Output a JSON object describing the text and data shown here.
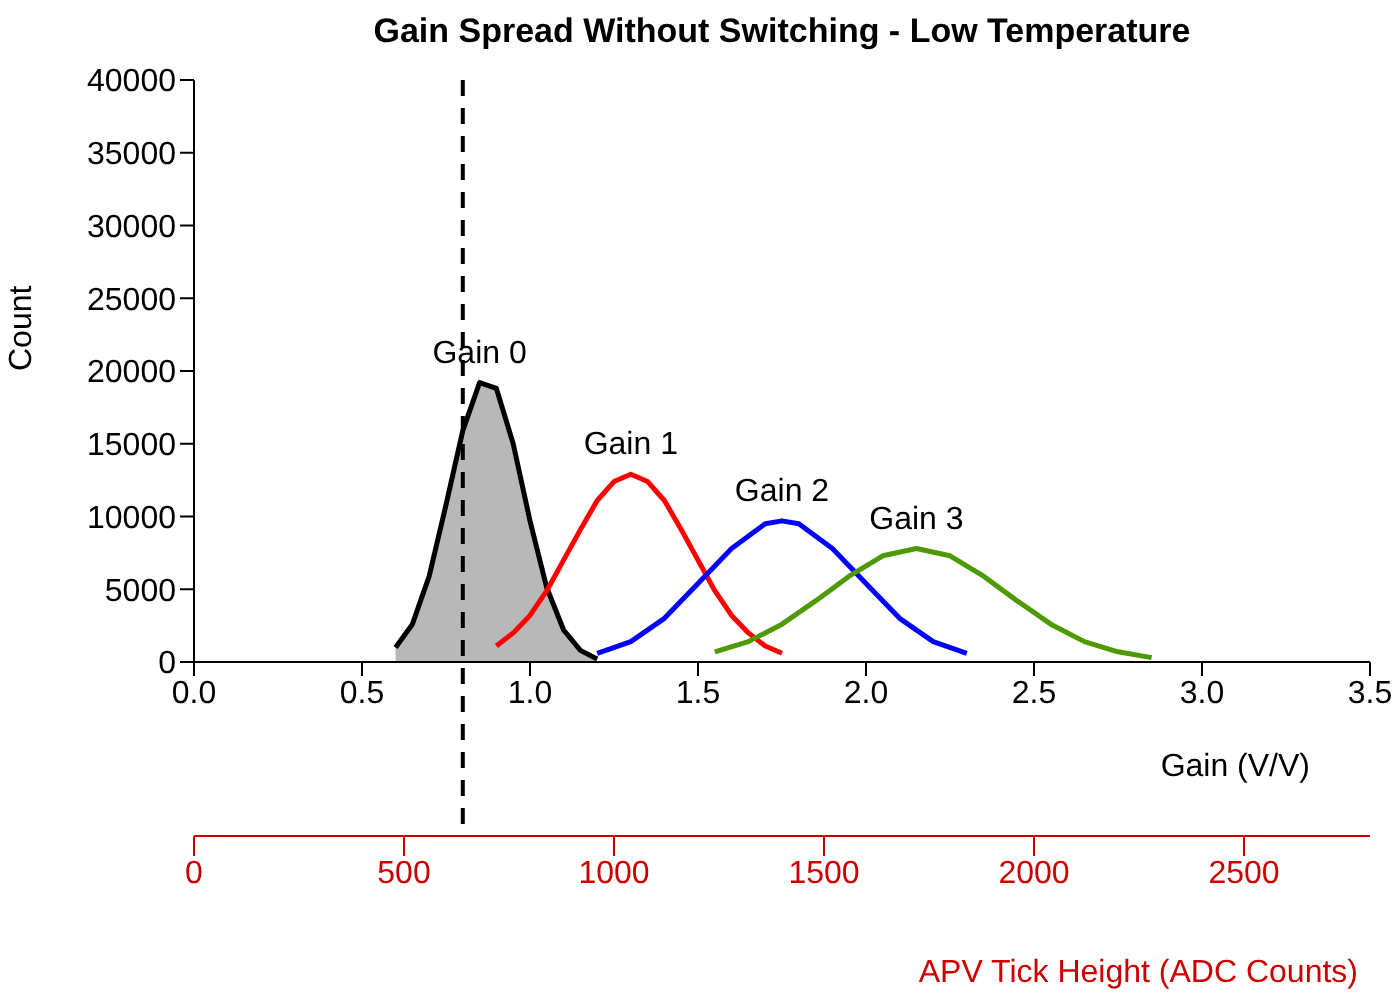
{
  "chart_data": {
    "type": "line",
    "title": "Gain Spread Without Switching - Low Temperature",
    "xlabel": "Gain (V/V)",
    "ylabel": "Count",
    "x2label": "APV Tick Height (ADC Counts)",
    "xlim": [
      0,
      3.5
    ],
    "xticks": [
      {
        "value": 0,
        "label": "0.0"
      },
      {
        "value": 0.5,
        "label": "0.5"
      },
      {
        "value": 1,
        "label": "1.0"
      },
      {
        "value": 1.5,
        "label": "1.5"
      },
      {
        "value": 2,
        "label": "2.0"
      },
      {
        "value": 2.5,
        "label": "2.5"
      },
      {
        "value": 3,
        "label": "3.0"
      },
      {
        "value": 3.5,
        "label": "3.5"
      }
    ],
    "x2lim": [
      0,
      2800
    ],
    "x2ticks": [
      0,
      500,
      1000,
      1500,
      2000,
      2500
    ],
    "ylim": [
      0,
      40000
    ],
    "yticks": [
      0,
      5000,
      10000,
      15000,
      20000,
      25000,
      30000,
      35000,
      40000
    ],
    "grid": false,
    "marker": "none",
    "line_style": "solid",
    "ref_lines": [
      {
        "axis": "x",
        "value": 0.8,
        "color": "#000000",
        "line_style": "dashed"
      }
    ],
    "series": [
      {
        "name": "Gain 0",
        "type": "area",
        "color": "#000000",
        "x": [
          0.6,
          0.65,
          0.7,
          0.75,
          0.8,
          0.85,
          0.9,
          0.95,
          1.0,
          1.05,
          1.1,
          1.15,
          1.2
        ],
        "values": [
          1000,
          2600,
          5900,
          10800,
          15900,
          19200,
          18800,
          15000,
          9700,
          5100,
          2200,
          800,
          200
        ]
      },
      {
        "name": "Gain 1",
        "color": "#ff0000",
        "x": [
          0.9,
          0.95,
          1.0,
          1.05,
          1.1,
          1.15,
          1.2,
          1.25,
          1.3,
          1.35,
          1.4,
          1.45,
          1.5,
          1.55,
          1.6,
          1.65,
          1.7,
          1.75
        ],
        "values": [
          1100,
          2000,
          3200,
          4900,
          7000,
          9100,
          11100,
          12400,
          12900,
          12400,
          11100,
          9100,
          7000,
          4900,
          3200,
          2000,
          1100,
          600
        ]
      },
      {
        "name": "Gain 2",
        "color": "#0000ff",
        "x": [
          1.2,
          1.3,
          1.4,
          1.5,
          1.6,
          1.7,
          1.75,
          1.8,
          1.9,
          2.0,
          2.1,
          2.2,
          2.3
        ],
        "values": [
          600,
          1400,
          3000,
          5400,
          7800,
          9500,
          9700,
          9500,
          7800,
          5400,
          3000,
          1400,
          600
        ]
      },
      {
        "name": "Gain 3",
        "color": "#4c9900",
        "x": [
          1.55,
          1.65,
          1.75,
          1.85,
          1.95,
          2.05,
          2.15,
          2.25,
          2.35,
          2.45,
          2.55,
          2.65,
          2.75,
          2.85
        ],
        "values": [
          700,
          1400,
          2600,
          4200,
          5900,
          7300,
          7800,
          7300,
          5900,
          4200,
          2600,
          1400,
          700,
          300
        ]
      }
    ]
  }
}
